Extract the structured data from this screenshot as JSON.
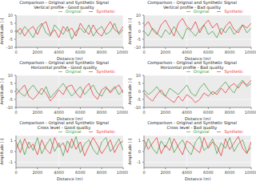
{
  "chart_data": [
    {
      "type": "line",
      "title": "Comparison - Original and Synthetic Signal",
      "subtitle": "Vertical profile - Good quality",
      "xlabel": "Distance [m]",
      "ylabel": "Amplitude [-]",
      "grid": true,
      "legend": "top",
      "xlim": [
        0,
        10000
      ],
      "xticks": [
        0,
        2000,
        4000,
        6000,
        8000,
        10000
      ],
      "ylim": [
        -10,
        10
      ],
      "yticks": [
        -10,
        -5,
        0,
        5,
        10
      ],
      "x": [
        0,
        400,
        800,
        1200,
        1600,
        2000,
        2400,
        2800,
        3200,
        3600,
        4000,
        4400,
        4800,
        5200,
        5600,
        6000,
        6400,
        6800,
        7200,
        7600,
        8000,
        8400,
        8800,
        9200,
        9600,
        10000
      ],
      "series": [
        {
          "name": "Original",
          "color": "#3a9a3a",
          "values": [
            1,
            -2,
            3,
            0,
            -4,
            2,
            5,
            -1,
            -3,
            4,
            1,
            -2,
            3,
            -5,
            0,
            2,
            -1,
            4,
            -3,
            1,
            3,
            -2,
            0,
            5,
            -2,
            1
          ]
        },
        {
          "name": "Synthetic",
          "color": "#e8272b",
          "values": [
            -1,
            2,
            -3,
            1,
            3,
            -2,
            4,
            6,
            -2,
            1,
            -4,
            3,
            0,
            2,
            -3,
            5,
            1,
            -2,
            4,
            -1,
            -3,
            2,
            6,
            1,
            -1,
            3
          ]
        }
      ]
    },
    {
      "type": "line",
      "title": "Comparison - Original and Synthetic Signal",
      "subtitle": "Vertical profile - Bad quality",
      "xlabel": "Distance [m]",
      "ylabel": "Amplitude [-]",
      "grid": true,
      "legend": "top",
      "xlim": [
        0,
        10000
      ],
      "xticks": [
        0,
        2000,
        4000,
        6000,
        8000,
        10000
      ],
      "ylim": [
        -10,
        10
      ],
      "yticks": [
        -10,
        -5,
        0,
        5,
        10
      ],
      "x": [
        0,
        400,
        800,
        1200,
        1600,
        2000,
        2400,
        2800,
        3200,
        3600,
        4000,
        4400,
        4800,
        5200,
        5600,
        6000,
        6400,
        6800,
        7200,
        7600,
        8000,
        8400,
        8800,
        9200,
        9600,
        10000
      ],
      "series": [
        {
          "name": "Original",
          "color": "#3a9a3a",
          "values": [
            0,
            -3,
            2,
            -1,
            -4,
            1,
            -2,
            3,
            -1,
            -5,
            2,
            0,
            -3,
            1,
            4,
            -2,
            0,
            -4,
            2,
            -1,
            3,
            -2,
            1,
            4,
            -1,
            2
          ]
        },
        {
          "name": "Synthetic",
          "color": "#e8272b",
          "values": [
            3,
            6,
            1,
            -2,
            4,
            7,
            2,
            -3,
            5,
            8,
            3,
            1,
            6,
            -1,
            4,
            7,
            2,
            5,
            -2,
            3,
            6,
            1,
            -1,
            4,
            2,
            5
          ]
        }
      ]
    },
    {
      "type": "line",
      "title": "Comparison - Original and Synthetic Signal",
      "subtitle": "Horizontal profile - Good quality",
      "xlabel": "Distance [m]",
      "ylabel": "Amplitude [-]",
      "grid": true,
      "legend": "top",
      "xlim": [
        0,
        10000
      ],
      "xticks": [
        0,
        2000,
        4000,
        6000,
        8000,
        10000
      ],
      "ylim": [
        -10,
        10
      ],
      "yticks": [
        -10,
        -5,
        0,
        5,
        10
      ],
      "x": [
        0,
        400,
        800,
        1200,
        1600,
        2000,
        2400,
        2800,
        3200,
        3600,
        4000,
        4400,
        4800,
        5200,
        5600,
        6000,
        6400,
        6800,
        7200,
        7600,
        8000,
        8400,
        8800,
        9200,
        9600,
        10000
      ],
      "series": [
        {
          "name": "Original",
          "color": "#3a9a3a",
          "values": [
            2,
            -1,
            -3,
            1,
            4,
            0,
            -2,
            3,
            -4,
            -1,
            2,
            5,
            1,
            -3,
            0,
            3,
            -2,
            1,
            4,
            -1,
            -3,
            2,
            0,
            3,
            -2,
            1
          ]
        },
        {
          "name": "Synthetic",
          "color": "#e8272b",
          "values": [
            -2,
            1,
            4,
            -3,
            -5,
            -2,
            2,
            -1,
            -6,
            -3,
            1,
            -2,
            3,
            4,
            -1,
            -4,
            2,
            5,
            -2,
            -5,
            1,
            3,
            -1,
            2,
            4,
            -1
          ]
        }
      ]
    },
    {
      "type": "line",
      "title": "Comparison - Original and Synthetic Signal",
      "subtitle": "Horizontal profile - Bad quality",
      "xlabel": "Distance [m]",
      "ylabel": "Amplitude [-]",
      "grid": true,
      "legend": "top",
      "xlim": [
        0,
        10000
      ],
      "xticks": [
        0,
        2000,
        4000,
        6000,
        8000,
        10000
      ],
      "ylim": [
        -10,
        10
      ],
      "yticks": [
        -10,
        -5,
        0,
        5,
        10
      ],
      "x": [
        0,
        400,
        800,
        1200,
        1600,
        2000,
        2400,
        2800,
        3200,
        3600,
        4000,
        4400,
        4800,
        5200,
        5600,
        6000,
        6400,
        6800,
        7200,
        7600,
        8000,
        8400,
        8800,
        9200,
        9600,
        10000
      ],
      "series": [
        {
          "name": "Original",
          "color": "#3a9a3a",
          "values": [
            1,
            -2,
            0,
            3,
            -1,
            -3,
            2,
            0,
            -2,
            1,
            4,
            -1,
            -3,
            2,
            5,
            1,
            -2,
            0,
            3,
            6,
            2,
            -1,
            4,
            7,
            3,
            5
          ]
        },
        {
          "name": "Synthetic",
          "color": "#e8272b",
          "values": [
            -1,
            -4,
            -6,
            -2,
            1,
            -3,
            -5,
            -7,
            -3,
            -6,
            -2,
            -4,
            -7,
            -5,
            -1,
            -3,
            0,
            -2,
            2,
            -1,
            3,
            5,
            2,
            6,
            4,
            7
          ]
        }
      ]
    },
    {
      "type": "line",
      "title": "Comparison - Original and Synthetic Signal",
      "subtitle": "Cross level - Good quality",
      "xlabel": "Distance [m]",
      "ylabel": "Amplitude [-]",
      "grid": true,
      "legend": "top",
      "xlim": [
        0,
        10000
      ],
      "xticks": [
        0,
        2000,
        4000,
        6000,
        8000,
        10000
      ],
      "ylim": [
        -1.5,
        1.5
      ],
      "yticks": [
        -1,
        0,
        1
      ],
      "x": [
        0,
        400,
        800,
        1200,
        1600,
        2000,
        2400,
        2800,
        3200,
        3600,
        4000,
        4400,
        4800,
        5200,
        5600,
        6000,
        6400,
        6800,
        7200,
        7600,
        8000,
        8400,
        8800,
        9200,
        9600,
        10000
      ],
      "series": [
        {
          "name": "Original",
          "color": "#3a9a3a",
          "values": [
            0.2,
            1.1,
            -0.3,
            0.9,
            0.1,
            1.3,
            -0.2,
            0.6,
            1.2,
            0,
            0.8,
            -0.4,
            1.0,
            0.3,
            1.4,
            -0.1,
            0.7,
            1.1,
            0.2,
            -0.3,
            0.9,
            1.3,
            0,
            0.5,
            1.2,
            0.1
          ]
        },
        {
          "name": "Synthetic",
          "color": "#e8272b",
          "values": [
            0.9,
            -0.1,
            1.2,
            0.3,
            0.7,
            -0.3,
            1.1,
            0.2,
            -0.2,
            1.3,
            0.4,
            0.8,
            -0.1,
            1.2,
            0.2,
            0.9,
            -0.4,
            0.5,
            1.3,
            0.6,
            -0.2,
            0.4,
            1.1,
            -0.1,
            0.7,
            1.0
          ]
        }
      ]
    },
    {
      "type": "line",
      "title": "Comparison - Original and Synthetic Signal",
      "subtitle": "Cross level - Bad quality",
      "xlabel": "Distance [m]",
      "ylabel": "Amplitude [-]",
      "grid": true,
      "legend": "top",
      "xlim": [
        0,
        10000
      ],
      "xticks": [
        0,
        2000,
        4000,
        6000,
        8000,
        10000
      ],
      "ylim": [
        -1.5,
        1.5
      ],
      "yticks": [
        -1,
        0,
        1
      ],
      "x": [
        0,
        400,
        800,
        1200,
        1600,
        2000,
        2400,
        2800,
        3200,
        3600,
        4000,
        4400,
        4800,
        5200,
        5600,
        6000,
        6400,
        6800,
        7200,
        7600,
        8000,
        8400,
        8800,
        9200,
        9600,
        10000
      ],
      "series": [
        {
          "name": "Original",
          "color": "#3a9a3a",
          "values": [
            0.1,
            1.2,
            0.3,
            -0.2,
            1.0,
            0.4,
            1.3,
            -0.1,
            0.6,
            1.1,
            0.2,
            -0.3,
            0.9,
            1.4,
            0.1,
            0.5,
            1.2,
            -0.2,
            0.8,
            0.3,
            1.3,
            0,
            0.7,
            1.1,
            -0.1,
            0.4
          ]
        },
        {
          "name": "Synthetic",
          "color": "#e8272b",
          "values": [
            1.1,
            0.2,
            0.8,
            1.3,
            -0.2,
            0.6,
            0.1,
            1.2,
            0.4,
            -0.3,
            1.0,
            0.7,
            0.2,
            -0.1,
            1.3,
            0.3,
            0.9,
            0.5,
            -0.4,
            1.2,
            0.2,
            0.8,
            1.4,
            0.3,
            -0.2,
            0.9
          ]
        }
      ]
    }
  ]
}
